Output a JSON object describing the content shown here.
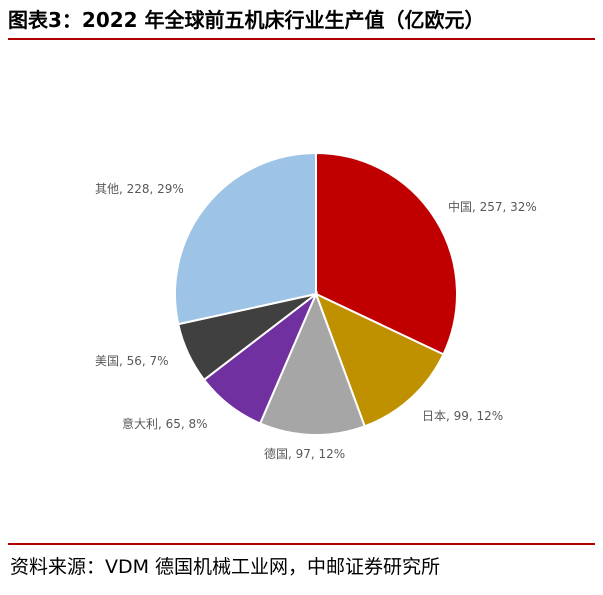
{
  "title": "图表3：2022 年全球前五机床行业生产值（亿欧元）",
  "source": "资料来源：VDM 德国机械工业网，中邮证券研究所",
  "chart_data": {
    "type": "pie",
    "title": "",
    "start_angle": "12 o'clock",
    "direction": "clockwise",
    "slices": [
      {
        "label": "中国",
        "value": 257,
        "percent": "32%",
        "text": "中国, 257, 32%",
        "color": "#c00000"
      },
      {
        "label": "日本",
        "value": 99,
        "percent": "12%",
        "text": "日本, 99, 12%",
        "color": "#bf9000"
      },
      {
        "label": "德国",
        "value": 97,
        "percent": "12%",
        "text": "德国, 97, 12%",
        "color": "#a6a6a6"
      },
      {
        "label": "意大利",
        "value": 65,
        "percent": "8%",
        "text": "意大利, 65, 8%",
        "color": "#7030a0"
      },
      {
        "label": "美国",
        "value": 56,
        "percent": "7%",
        "text": "美国, 56, 7%",
        "color": "#404040"
      },
      {
        "label": "其他",
        "value": 228,
        "percent": "29%",
        "text": "其他, 228, 29%",
        "color": "#9dc3e6"
      }
    ]
  }
}
